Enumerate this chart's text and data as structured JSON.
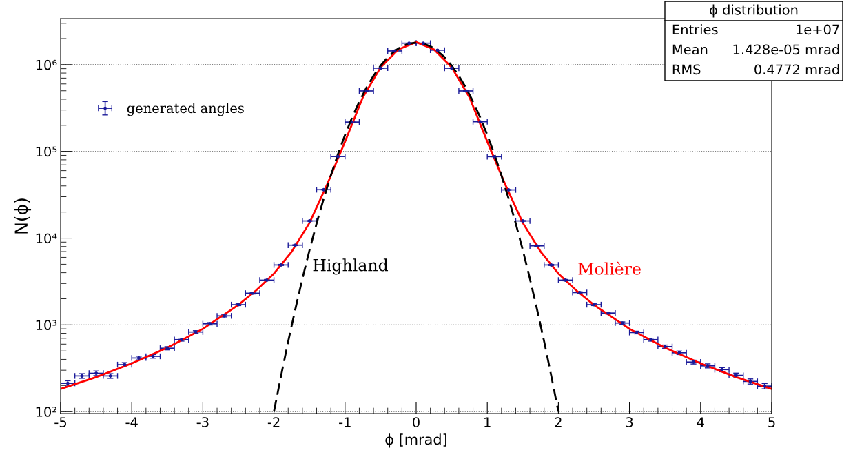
{
  "chart_data": {
    "type": "scatter",
    "xlabel": "ϕ [mrad]",
    "ylabel": "N(ϕ)",
    "log": "y",
    "grid": "y",
    "legend": "top left",
    "xlim": [
      -5,
      5
    ],
    "xticks": [
      -5,
      -4,
      -3,
      -2,
      -1,
      0,
      1,
      2,
      3,
      4,
      5
    ],
    "ylim": [
      95,
      3400000
    ],
    "yticks": [
      {
        "value": 100,
        "label": "10²"
      },
      {
        "value": 1000,
        "label": "10³"
      },
      {
        "value": 10000,
        "label": "10⁴"
      },
      {
        "value": 100000,
        "label": "10⁵"
      },
      {
        "value": 1000000,
        "label": "10⁶"
      }
    ],
    "annotations": [
      "ϕ distribution",
      "Entries",
      "1e+07",
      "Mean",
      "1.428e-05 mrad",
      "RMS",
      "0.4772 mrad",
      "Highland",
      "Molière"
    ],
    "series": [
      {
        "name": "generated angles",
        "color": "#1a1a99",
        "marker": "circle",
        "x": [
          -4.9,
          -4.7,
          -4.5,
          -4.3,
          -4.1,
          -3.9,
          -3.7,
          -3.5,
          -3.3,
          -3.1,
          -2.9,
          -2.7,
          -2.5,
          -2.3,
          -2.1,
          -1.9,
          -1.7,
          -1.5,
          -1.3,
          -1.1,
          -0.9,
          -0.7,
          -0.5,
          -0.3,
          -0.1,
          0.1,
          0.3,
          0.5,
          0.7,
          0.9,
          1.1,
          1.3,
          1.5,
          1.7,
          1.9,
          2.1,
          2.3,
          2.5,
          2.7,
          2.9,
          3.1,
          3.3,
          3.5,
          3.7,
          3.9,
          4.1,
          4.3,
          4.5,
          4.7,
          4.9
        ],
        "values": [
          212,
          258,
          277,
          258,
          348,
          415,
          434,
          538,
          676,
          828,
          1030,
          1270,
          1710,
          2320,
          3280,
          4910,
          8300,
          15800,
          36200,
          87300,
          218000,
          498000,
          912000,
          1440000,
          1770000,
          1770000,
          1470000,
          910000,
          498000,
          220000,
          87000,
          36000,
          15800,
          8150,
          4910,
          3280,
          2360,
          1710,
          1370,
          1050,
          817,
          676,
          562,
          477,
          373,
          337,
          305,
          262,
          223,
          197
        ],
        "xerrors": [
          0.1,
          0.1,
          0.1,
          0.1,
          0.1,
          0.1,
          0.1,
          0.1,
          0.1,
          0.1,
          0.1,
          0.1,
          0.1,
          0.1,
          0.1,
          0.1,
          0.1,
          0.1,
          0.1,
          0.1,
          0.1,
          0.1,
          0.1,
          0.1,
          0.1,
          0.1,
          0.1,
          0.1,
          0.1,
          0.1,
          0.1,
          0.1,
          0.1,
          0.1,
          0.1,
          0.1,
          0.1,
          0.1,
          0.1,
          0.1,
          0.1,
          0.1,
          0.1,
          0.1,
          0.1,
          0.1,
          0.1,
          0.1,
          0.1,
          0.1
        ],
        "errors": [
          15,
          16,
          17,
          16,
          19,
          20,
          21,
          23,
          26,
          29,
          32,
          36,
          41,
          48,
          57,
          70,
          91,
          126,
          190,
          295,
          467,
          706,
          955,
          1200,
          1330,
          1330,
          1210,
          954,
          706,
          469,
          295,
          190,
          126,
          90,
          70,
          57,
          49,
          41,
          37,
          32,
          29,
          26,
          24,
          22,
          19,
          18,
          17,
          16,
          15,
          14
        ]
      },
      {
        "type": "line",
        "color": "#ff0000",
        "line_style": "solid",
        "marker": "none",
        "x": [
          -5,
          -4.5,
          -4,
          -3.5,
          -3,
          -2.5,
          -2.25,
          -2,
          -1.75,
          -1.5,
          -1.25,
          -1,
          -0.75,
          -0.5,
          -0.25,
          0,
          0.25,
          0.5,
          0.75,
          1,
          1.25,
          1.5,
          1.75,
          2,
          2.25,
          2.5,
          3,
          3.5,
          4,
          4.5,
          5
        ],
        "values": [
          183,
          250,
          360,
          545,
          900,
          1700,
          2500,
          3900,
          7000,
          15000,
          42000,
          130000,
          420000,
          930000,
          1500000,
          1820000,
          1500000,
          930000,
          420000,
          130000,
          42000,
          15000,
          7000,
          3900,
          2500,
          1700,
          900,
          545,
          360,
          250,
          183
        ]
      },
      {
        "type": "line",
        "color": "#000000",
        "line_style": "dashed",
        "marker": "none",
        "x": [
          -2,
          -1.9,
          -1.8,
          -1.7,
          -1.6,
          -1.5,
          -1.4,
          -1.3,
          -1.2,
          -1.1,
          -1,
          -0.9,
          -0.8,
          -0.7,
          -0.6,
          -0.5,
          -0.4,
          -0.3,
          -0.2,
          -0.1,
          0,
          0.1,
          0.2,
          0.3,
          0.4,
          0.5,
          0.6,
          0.7,
          0.8,
          0.9,
          1,
          1.1,
          1.2,
          1.3,
          1.4,
          1.5,
          1.6,
          1.7,
          1.8,
          1.9,
          2
        ],
        "values": [
          100,
          259,
          643,
          1510,
          3400,
          7260,
          14800,
          28600,
          52800,
          92900,
          155000,
          247000,
          375000,
          542000,
          745000,
          975000,
          1220000,
          1440000,
          1630000,
          1750000,
          1800000,
          1750000,
          1630000,
          1440000,
          1220000,
          975000,
          745000,
          542000,
          375000,
          247000,
          155000,
          92900,
          52800,
          28600,
          14800,
          7260,
          3400,
          1510,
          643,
          259,
          100
        ]
      }
    ]
  }
}
